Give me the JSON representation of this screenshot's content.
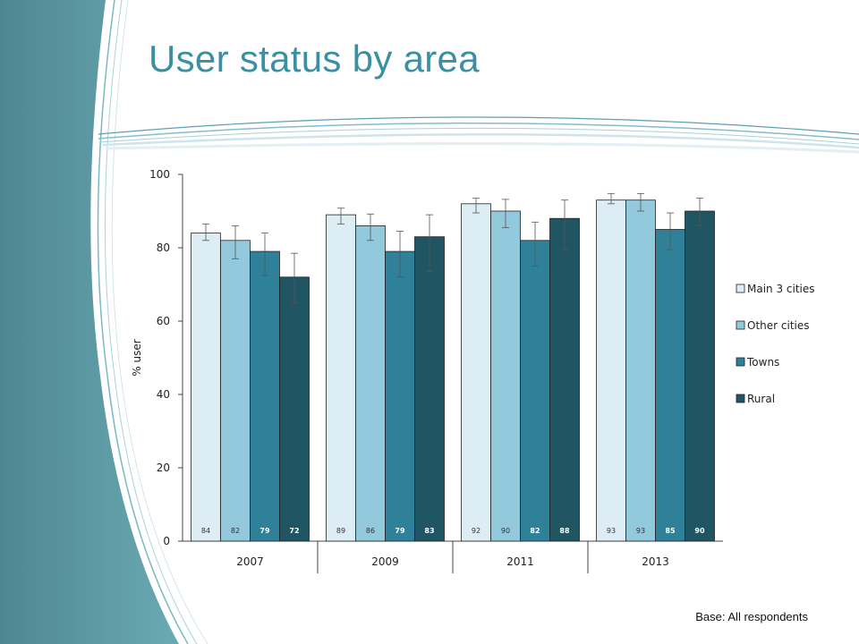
{
  "slide": {
    "title": "User status by area",
    "base_note": "Base: All respondents",
    "accent_color": "#3a8fa3"
  },
  "chart_data": {
    "type": "bar",
    "ylabel": "% user",
    "xlabel": "",
    "ylim": [
      0,
      100
    ],
    "yticks": [
      0,
      20,
      40,
      60,
      80,
      100
    ],
    "categories": [
      "2007",
      "2009",
      "2011",
      "2013"
    ],
    "legend_position": "right",
    "grid": false,
    "series": [
      {
        "name": "Main 3 cities",
        "color": "#dcedf3",
        "label_color": "#333333",
        "values": [
          84,
          89,
          92,
          93
        ],
        "error_low": [
          82.0,
          86.5,
          89.5,
          92.0
        ],
        "error_high": [
          86.5,
          90.8,
          93.5,
          94.8
        ]
      },
      {
        "name": "Other cities",
        "color": "#92c9dc",
        "label_color": "#333333",
        "values": [
          82,
          86,
          90,
          93
        ],
        "error_low": [
          77.0,
          82.0,
          85.5,
          90.0
        ],
        "error_high": [
          86.0,
          89.2,
          93.2,
          94.8
        ]
      },
      {
        "name": "Towns",
        "color": "#2e8199",
        "label_color": "#ffffff",
        "values": [
          79,
          79,
          82,
          85
        ],
        "error_low": [
          72.5,
          72.0,
          75.0,
          79.5
        ],
        "error_high": [
          84.0,
          84.5,
          87.0,
          89.5
        ]
      },
      {
        "name": "Rural",
        "color": "#205564",
        "label_color": "#ffffff",
        "values": [
          72,
          83,
          88,
          90
        ],
        "error_low": [
          65.0,
          73.5,
          79.5,
          86.0
        ],
        "error_high": [
          78.5,
          89.0,
          93.0,
          93.5
        ]
      }
    ]
  }
}
